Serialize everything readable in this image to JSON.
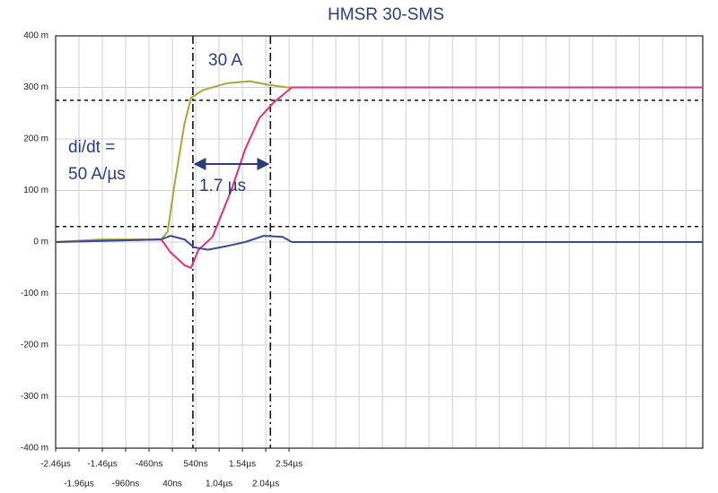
{
  "chart_data": {
    "type": "line",
    "title": "HMSR 30-SMS",
    "xlim": [
      -2.46,
      11.4
    ],
    "ylim": [
      -400,
      400
    ],
    "xticks": [
      {
        "value": -2.46,
        "label": "-2.46µs"
      },
      {
        "value": -1.96,
        "label": "-1.96µs"
      },
      {
        "value": -1.46,
        "label": "-1.46µs"
      },
      {
        "value": -0.96,
        "label": "-960ns"
      },
      {
        "value": -0.46,
        "label": "-460ns"
      },
      {
        "value": 0.04,
        "label": "40ns"
      },
      {
        "value": 0.54,
        "label": "540ns"
      },
      {
        "value": 1.04,
        "label": "1.04µs"
      },
      {
        "value": 1.54,
        "label": "1.54µs"
      },
      {
        "value": 2.04,
        "label": "2.04µs"
      },
      {
        "value": 2.54,
        "label": "2.54µs"
      }
    ],
    "yticks": [
      {
        "value": 400,
        "label": "400 m"
      },
      {
        "value": 300,
        "label": "300 m"
      },
      {
        "value": 200,
        "label": "200 m"
      },
      {
        "value": 100,
        "label": "100 m"
      },
      {
        "value": 0,
        "label": "0 m"
      },
      {
        "value": -100,
        "label": "-100 m"
      },
      {
        "value": -200,
        "label": "-200 m"
      },
      {
        "value": -300,
        "label": "-300 m"
      },
      {
        "value": -400,
        "label": "-400 m"
      }
    ],
    "grid": {
      "x_step": 0.5
    },
    "series": [
      {
        "color": "#a6a83a",
        "x": [
          -2.46,
          -1.5,
          -0.2,
          -0.06,
          0.1,
          0.3,
          0.44,
          0.7,
          1.2,
          1.7,
          2.1,
          2.5,
          11.4
        ],
        "values": [
          0,
          5,
          5,
          20,
          120,
          230,
          280,
          295,
          308,
          312,
          305,
          300,
          300
        ]
      },
      {
        "color": "#e0307a",
        "x": [
          -2.46,
          -0.2,
          0.0,
          0.3,
          0.44,
          0.6,
          0.9,
          1.3,
          1.6,
          1.9,
          2.2,
          2.6,
          11.4
        ],
        "values": [
          0,
          5,
          -20,
          -45,
          -50,
          -15,
          10,
          100,
          180,
          240,
          270,
          300,
          300
        ]
      },
      {
        "color": "#3a4a9a",
        "x": [
          -2.46,
          -0.2,
          0.0,
          0.3,
          0.5,
          0.8,
          1.2,
          1.6,
          2.0,
          2.4,
          2.6,
          11.4
        ],
        "values": [
          0,
          5,
          12,
          5,
          -10,
          -15,
          -8,
          0,
          12,
          10,
          0,
          0
        ]
      }
    ],
    "hlines": [
      275,
      30
    ],
    "vlines": [
      0.48,
      2.14
    ],
    "annotations": [
      "30 A",
      "di/dt =",
      "50 A/µs",
      "1.7 µs"
    ]
  }
}
